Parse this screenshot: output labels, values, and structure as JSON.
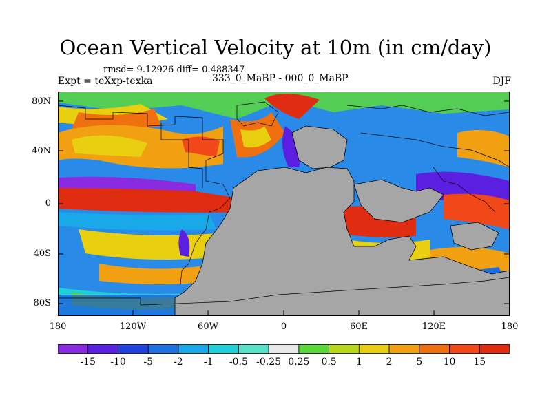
{
  "title": "Ocean Vertical Velocity at 10m (in cm/day)",
  "rmsd_line": "rmsd= 9.12926 diff= 0.488347",
  "experiment": "Expt = teXxp-texka",
  "comparison": "333_0_MaBP - 000_0_MaBP",
  "season": "DJF",
  "axes": {
    "lat_labels": [
      "80N",
      "40N",
      "0",
      "40S",
      "80S"
    ],
    "lon_labels": [
      "180",
      "120W",
      "60W",
      "0",
      "60E",
      "120E",
      "180"
    ]
  },
  "colorbar": {
    "labels": [
      "-15",
      "-10",
      "-5",
      "-2",
      "-1",
      "-0.5",
      "-0.25",
      "0.25",
      "0.5",
      "1",
      "2",
      "5",
      "10",
      "15"
    ],
    "colors": [
      "#8a2be2",
      "#5a1fe0",
      "#2040e0",
      "#1f6fe0",
      "#19a8e8",
      "#1fd0d8",
      "#58e0c8",
      "#e8e8e8",
      "#5ad838",
      "#b8d81a",
      "#e8d010",
      "#f0a010",
      "#f07010",
      "#f04818",
      "#e02c10"
    ]
  },
  "palette": {
    "land": "#a6a6a6",
    "coast": "#000000"
  }
}
